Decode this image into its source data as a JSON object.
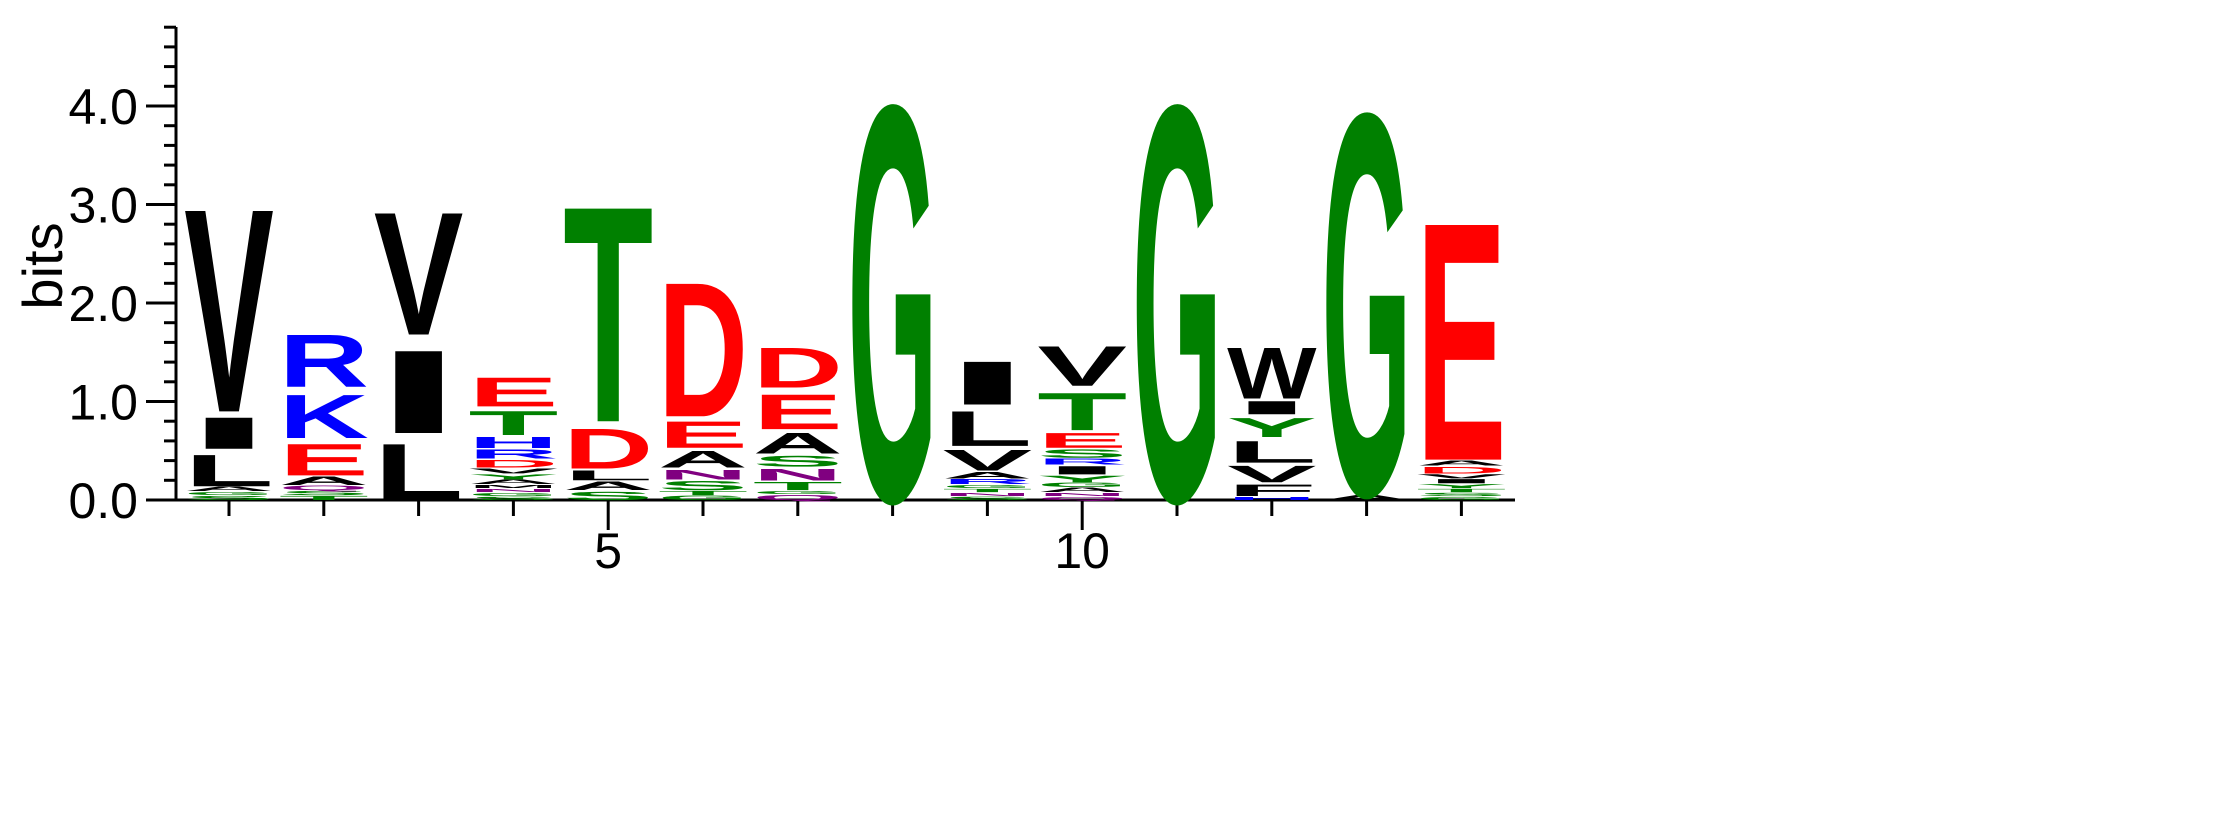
{
  "chart_data": {
    "type": "sequence-logo",
    "ylabel": "bits",
    "ylim": [
      0,
      4.8
    ],
    "yticks": [
      0,
      1,
      2,
      3,
      4
    ],
    "ytick_labels": [
      "0.0",
      "1.0",
      "2.0",
      "3.0",
      "4.0"
    ],
    "xlim": [
      0.5,
      14.5
    ],
    "xticks": [
      5,
      10
    ],
    "xtick_labels": [
      "5",
      "10"
    ],
    "grid": false,
    "legend": "none",
    "colors": {
      "V": "#000000",
      "I": "#000000",
      "L": "#000000",
      "A": "#000000",
      "W": "#000000",
      "F": "#000000",
      "M": "#000000",
      "P": "#000000",
      "R": "#0000ff",
      "K": "#0000ff",
      "H": "#0000ff",
      "D": "#ff0000",
      "E": "#ff0000",
      "T": "#008000",
      "S": "#008000",
      "G": "#008000",
      "Y": "#008000",
      "C": "#008000",
      "N": "#800080",
      "Q": "#800080"
    },
    "positions": [
      {
        "pos": 1,
        "letters": [
          {
            "l": "S",
            "h": 0.05
          },
          {
            "l": "G",
            "h": 0.04
          },
          {
            "l": "A",
            "h": 0.05
          },
          {
            "l": "L",
            "h": 0.38
          },
          {
            "l": "I",
            "h": 0.38
          },
          {
            "l": "V",
            "h": 2.45
          }
        ]
      },
      {
        "pos": 2,
        "letters": [
          {
            "l": "T",
            "h": 0.05
          },
          {
            "l": "S",
            "h": 0.05
          },
          {
            "l": "Q",
            "h": 0.05
          },
          {
            "l": "A",
            "h": 0.1
          },
          {
            "l": "E",
            "h": 0.38
          },
          {
            "l": "K",
            "h": 0.52
          },
          {
            "l": "R",
            "h": 0.63
          }
        ]
      },
      {
        "pos": 3,
        "letters": [
          {
            "l": "L",
            "h": 0.68
          },
          {
            "l": "I",
            "h": 1.0
          },
          {
            "l": "V",
            "h": 1.48
          }
        ]
      },
      {
        "pos": 4,
        "letters": [
          {
            "l": "S",
            "h": 0.04
          },
          {
            "l": "G",
            "h": 0.04
          },
          {
            "l": "N",
            "h": 0.04
          },
          {
            "l": "M",
            "h": 0.04
          },
          {
            "l": "A",
            "h": 0.05
          },
          {
            "l": "Y",
            "h": 0.06
          },
          {
            "l": "V",
            "h": 0.06
          },
          {
            "l": "D",
            "h": 0.09
          },
          {
            "l": "R",
            "h": 0.11
          },
          {
            "l": "H",
            "h": 0.13
          },
          {
            "l": "T",
            "h": 0.29
          },
          {
            "l": "E",
            "h": 0.35
          }
        ]
      },
      {
        "pos": 5,
        "letters": [
          {
            "l": "S",
            "h": 0.1
          },
          {
            "l": "A",
            "h": 0.1
          },
          {
            "l": "L",
            "h": 0.12
          },
          {
            "l": "D",
            "h": 0.48
          },
          {
            "l": "T",
            "h": 2.6
          }
        ]
      },
      {
        "pos": 6,
        "letters": [
          {
            "l": "G",
            "h": 0.05
          },
          {
            "l": "T",
            "h": 0.05
          },
          {
            "l": "S",
            "h": 0.11
          },
          {
            "l": "N",
            "h": 0.12
          },
          {
            "l": "A",
            "h": 0.2
          },
          {
            "l": "E",
            "h": 0.32
          },
          {
            "l": "D",
            "h": 1.62
          }
        ]
      },
      {
        "pos": 7,
        "letters": [
          {
            "l": "Q",
            "h": 0.06
          },
          {
            "l": "G",
            "h": 0.04
          },
          {
            "l": "T",
            "h": 0.1
          },
          {
            "l": "N",
            "h": 0.14
          },
          {
            "l": "S",
            "h": 0.13
          },
          {
            "l": "A",
            "h": 0.25
          },
          {
            "l": "E",
            "h": 0.42
          },
          {
            "l": "D",
            "h": 0.48
          }
        ]
      },
      {
        "pos": 8,
        "letters": [
          {
            "l": "G",
            "h": 4.77
          }
        ]
      },
      {
        "pos": 9,
        "letters": [
          {
            "l": "S",
            "h": 0.04
          },
          {
            "l": "N",
            "h": 0.04
          },
          {
            "l": "T",
            "h": 0.04
          },
          {
            "l": "G",
            "h": 0.04
          },
          {
            "l": "R",
            "h": 0.06
          },
          {
            "l": "A",
            "h": 0.08
          },
          {
            "l": "V",
            "h": 0.25
          },
          {
            "l": "L",
            "h": 0.42
          },
          {
            "l": "I",
            "h": 0.52
          }
        ]
      },
      {
        "pos": 10,
        "letters": [
          {
            "l": "Q",
            "h": 0.04
          },
          {
            "l": "N",
            "h": 0.04
          },
          {
            "l": "A",
            "h": 0.05
          },
          {
            "l": "G",
            "h": 0.05
          },
          {
            "l": "Y",
            "h": 0.08
          },
          {
            "l": "I",
            "h": 0.1
          },
          {
            "l": "R",
            "h": 0.07
          },
          {
            "l": "S",
            "h": 0.1
          },
          {
            "l": "E",
            "h": 0.18
          },
          {
            "l": "T",
            "h": 0.45
          },
          {
            "l": "V",
            "h": 0.48
          }
        ]
      },
      {
        "pos": 11,
        "letters": [
          {
            "l": "G",
            "h": 4.77
          }
        ]
      },
      {
        "pos": 12,
        "letters": [
          {
            "l": "H",
            "h": 0.04
          },
          {
            "l": "F",
            "h": 0.14
          },
          {
            "l": "V",
            "h": 0.2
          },
          {
            "l": "L",
            "h": 0.26
          },
          {
            "l": "Y",
            "h": 0.23
          },
          {
            "l": "I",
            "h": 0.16
          },
          {
            "l": "W",
            "h": 0.62
          }
        ]
      },
      {
        "pos": 13,
        "letters": [
          {
            "l": "A",
            "h": 0.06
          },
          {
            "l": "G",
            "h": 4.6
          }
        ]
      },
      {
        "pos": 14,
        "letters": [
          {
            "l": "G",
            "h": 0.04
          },
          {
            "l": "S",
            "h": 0.04
          },
          {
            "l": "T",
            "h": 0.04
          },
          {
            "l": "Y",
            "h": 0.05
          },
          {
            "l": "I",
            "h": 0.05
          },
          {
            "l": "V",
            "h": 0.05
          },
          {
            "l": "D",
            "h": 0.08
          },
          {
            "l": "A",
            "h": 0.06
          },
          {
            "l": "E",
            "h": 2.87
          }
        ]
      }
    ]
  }
}
